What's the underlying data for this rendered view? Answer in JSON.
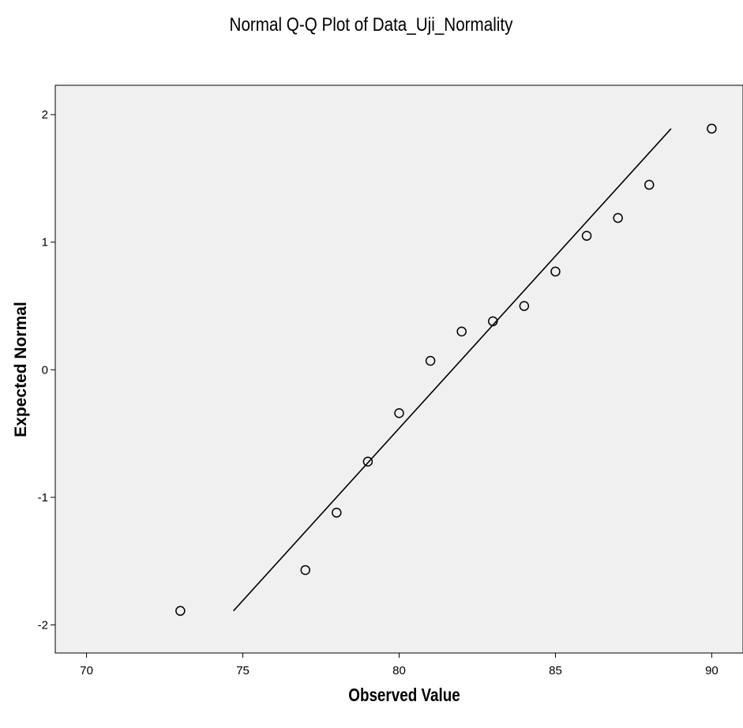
{
  "chart_data": {
    "type": "scatter",
    "title": "Normal Q-Q Plot of Data_Uji_Normality",
    "xlabel": "Observed Value",
    "ylabel": "Expected Normal",
    "xlim": [
      69,
      91
    ],
    "ylim": [
      -2.22,
      2.23
    ],
    "xticks": [
      70,
      75,
      80,
      85,
      90
    ],
    "yticks": [
      -2,
      -1,
      0,
      1,
      2
    ],
    "grid": false,
    "plot_background": "#f0f0f0",
    "marker_color": "#000000",
    "points": [
      {
        "x": 73,
        "y": -1.89
      },
      {
        "x": 77,
        "y": -1.57
      },
      {
        "x": 78,
        "y": -1.12
      },
      {
        "x": 79,
        "y": -0.72
      },
      {
        "x": 80,
        "y": -0.34
      },
      {
        "x": 81,
        "y": 0.07
      },
      {
        "x": 82,
        "y": 0.3
      },
      {
        "x": 83,
        "y": 0.38
      },
      {
        "x": 84,
        "y": 0.5
      },
      {
        "x": 85,
        "y": 0.77
      },
      {
        "x": 86,
        "y": 1.05
      },
      {
        "x": 87,
        "y": 1.19
      },
      {
        "x": 88,
        "y": 1.45
      },
      {
        "x": 90,
        "y": 1.89
      }
    ],
    "reference_line": {
      "x1": 74.7,
      "y1": -1.89,
      "x2": 88.7,
      "y2": 1.89
    }
  }
}
